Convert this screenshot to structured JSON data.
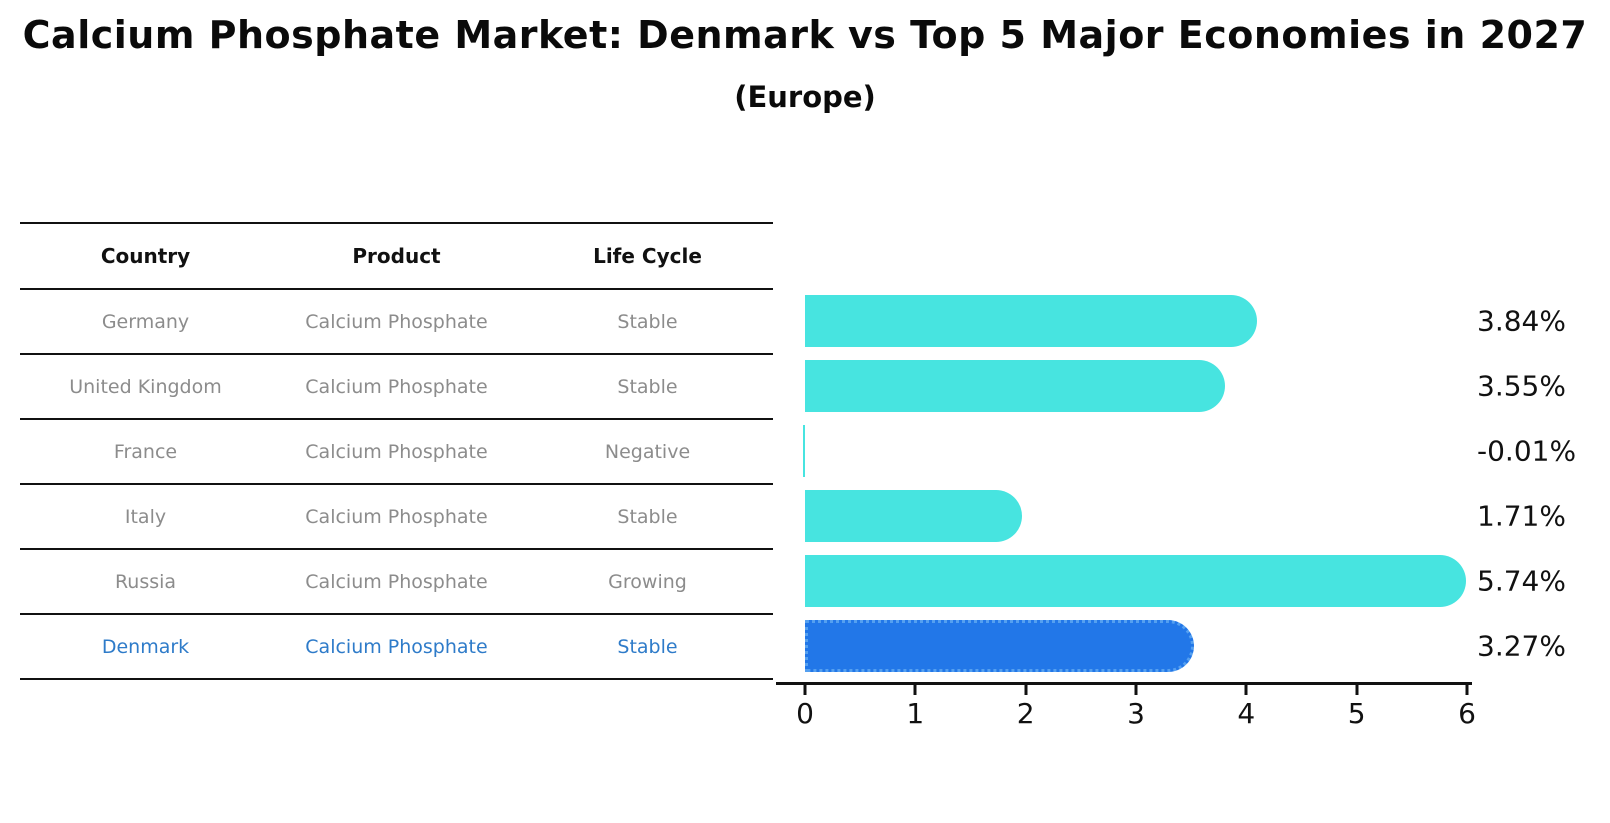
{
  "header": {
    "title": "Calcium Phosphate Market: Denmark vs Top 5 Major Economies in 2027",
    "subtitle": "(Europe)"
  },
  "table": {
    "headers": [
      "Country",
      "Product",
      "Life Cycle"
    ],
    "rows": [
      {
        "country": "Germany",
        "product": "Calcium Phosphate",
        "life_cycle": "Stable",
        "highlight": false
      },
      {
        "country": "United Kingdom",
        "product": "Calcium Phosphate",
        "life_cycle": "Stable",
        "highlight": false
      },
      {
        "country": "France",
        "product": "Calcium Phosphate",
        "life_cycle": "Negative",
        "highlight": false
      },
      {
        "country": "Italy",
        "product": "Calcium Phosphate",
        "life_cycle": "Stable",
        "highlight": false
      },
      {
        "country": "Russia",
        "product": "Calcium Phosphate",
        "life_cycle": "Growing",
        "highlight": false
      },
      {
        "country": "Denmark",
        "product": "Calcium Phosphate",
        "life_cycle": "Stable",
        "highlight": true
      }
    ]
  },
  "chart_data": {
    "type": "bar",
    "orientation": "horizontal",
    "title": "Calcium Phosphate Market: Denmark vs Top 5 Major Economies in 2027",
    "subtitle": "(Europe)",
    "categories": [
      "Germany",
      "United Kingdom",
      "France",
      "Italy",
      "Russia",
      "Denmark"
    ],
    "values": [
      3.84,
      3.55,
      -0.01,
      1.71,
      5.74,
      3.27
    ],
    "labels": [
      "3.84%",
      "3.55%",
      "-0.01%",
      "1.71%",
      "5.74%",
      "3.27%"
    ],
    "xlabel": "",
    "ylabel": "",
    "xlim": [
      0,
      6
    ],
    "xticks": [
      0,
      1,
      2,
      3,
      4,
      5,
      6
    ],
    "grid": false,
    "legend": false,
    "bar_color": "#47e4e0",
    "highlight_index": 5,
    "highlight_bar_color": "#2277e8",
    "highlight_border_color": "#55a0f0",
    "highlight_text_color": "#2e7bc9",
    "muted_text_color": "#8c8c8c"
  }
}
